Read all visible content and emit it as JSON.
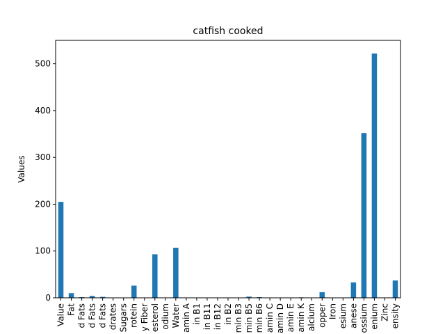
{
  "chart_data": {
    "type": "bar",
    "title": "catfish cooked",
    "xlabel": "",
    "ylabel": "Values",
    "ylim": [
      0,
      550
    ],
    "yticks": [
      0,
      100,
      200,
      300,
      400,
      500
    ],
    "grid": false,
    "legend": "none",
    "bar_color": "#1f77b4",
    "categories": [
      "Value",
      "Fat",
      "d Fats",
      "d Fats",
      "d Fats",
      "drates",
      "Sugars",
      "rotein",
      "y Fiber",
      "esterol",
      "odium",
      "Water",
      "amin A",
      "in B1",
      "in B11",
      "in B12",
      "in B2",
      "min B3",
      "min B5",
      "min B6",
      "amin C",
      "amin D",
      "amin E",
      "amin K",
      "alcium",
      "opper",
      "Iron",
      "esium",
      "anese",
      "ossium",
      "enium",
      "Zinc",
      "ensity"
    ],
    "values": [
      205,
      10,
      1.5,
      4,
      2,
      0,
      0,
      26,
      0,
      93,
      0,
      107,
      0,
      0,
      0,
      0,
      0,
      0,
      2.5,
      1.5,
      0,
      0,
      0,
      1,
      0,
      12,
      0,
      0,
      33,
      352,
      522,
      0,
      37
    ]
  }
}
